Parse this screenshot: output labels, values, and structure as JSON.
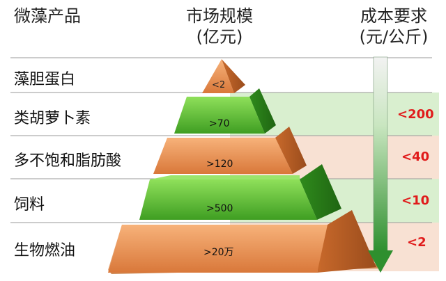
{
  "headers": {
    "product": "微藻产品",
    "market_line1": "市场规模",
    "market_line2": "(亿元)",
    "cost_line1": "成本要求",
    "cost_line2": "(元/公斤)"
  },
  "rows": [
    {
      "product": "藻胆蛋白",
      "market": "<2",
      "cost": "",
      "tier_color": "orange"
    },
    {
      "product": "类胡萝卜素",
      "market": ">70",
      "cost": "<200",
      "tier_color": "green"
    },
    {
      "product": "多不饱和脂肪酸",
      "market": ">120",
      "cost": "<40",
      "tier_color": "orange"
    },
    {
      "product": "饲料",
      "market": ">500",
      "cost": "<10",
      "tier_color": "green"
    },
    {
      "product": "生物燃油",
      "market": ">20万",
      "cost": "<2",
      "tier_color": "orange"
    }
  ],
  "colors": {
    "green_band": "#d9efcf",
    "orange_band": "#f8e1d3",
    "green_face": "#67c23a",
    "orange_face": "#e9964f",
    "cost_text": "#e01b1b",
    "arrow": "#3aa53a"
  }
}
